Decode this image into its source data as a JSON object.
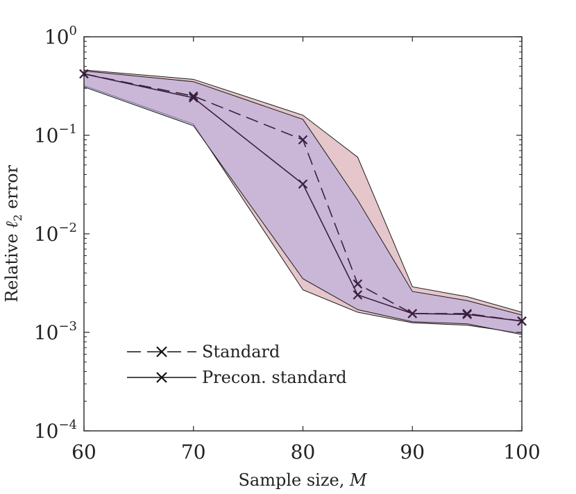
{
  "chart_data": {
    "type": "line",
    "xlabel_text": "Sample size, ",
    "xlabel_var": "M",
    "ylabel_pre": "Relative ",
    "ylabel_sym": "ℓ",
    "ylabel_sub": "2",
    "ylabel_post": " error",
    "xlim": [
      60,
      100
    ],
    "ylim_log10": [
      -4,
      0
    ],
    "x_ticks": [
      60,
      70,
      80,
      90,
      100
    ],
    "x_tick_labels": [
      "60",
      "70",
      "80",
      "90",
      "100"
    ],
    "y_ticks": [
      {
        "exp": 0,
        "base": "10",
        "sup": "0"
      },
      {
        "exp": -1,
        "base": "10",
        "sup": "−1"
      },
      {
        "exp": -2,
        "base": "10",
        "sup": "−2"
      },
      {
        "exp": -3,
        "base": "10",
        "sup": "−3"
      },
      {
        "exp": -4,
        "base": "10",
        "sup": "−4"
      }
    ],
    "series": [
      {
        "name": "Standard",
        "style": "dashed",
        "x": [
          60,
          70,
          80,
          85,
          90,
          95,
          100
        ],
        "y": [
          0.42,
          0.25,
          0.09,
          0.0031,
          0.00155,
          0.00155,
          0.0013
        ],
        "band_upper": [
          0.46,
          0.37,
          0.16,
          0.06,
          0.0029,
          0.0023,
          0.0016
        ],
        "band_lower": [
          0.32,
          0.13,
          0.0027,
          0.0016,
          0.00125,
          0.00118,
          0.00098
        ],
        "band_color": "#d4a0a8"
      },
      {
        "name": "Precon. standard",
        "style": "solid",
        "x": [
          60,
          70,
          80,
          85,
          90,
          95,
          100
        ],
        "y": [
          0.42,
          0.24,
          0.032,
          0.0024,
          0.00155,
          0.00152,
          0.0013
        ],
        "band_upper": [
          0.45,
          0.35,
          0.145,
          0.022,
          0.0026,
          0.0021,
          0.0015
        ],
        "band_lower": [
          0.31,
          0.125,
          0.0035,
          0.0017,
          0.00128,
          0.00122,
          0.00095
        ],
        "band_color": "#b8aee0"
      }
    ],
    "legend": [
      "Standard",
      "Precon. standard"
    ],
    "legend_location": "lower-left",
    "line_color": "#3a1f3d"
  }
}
